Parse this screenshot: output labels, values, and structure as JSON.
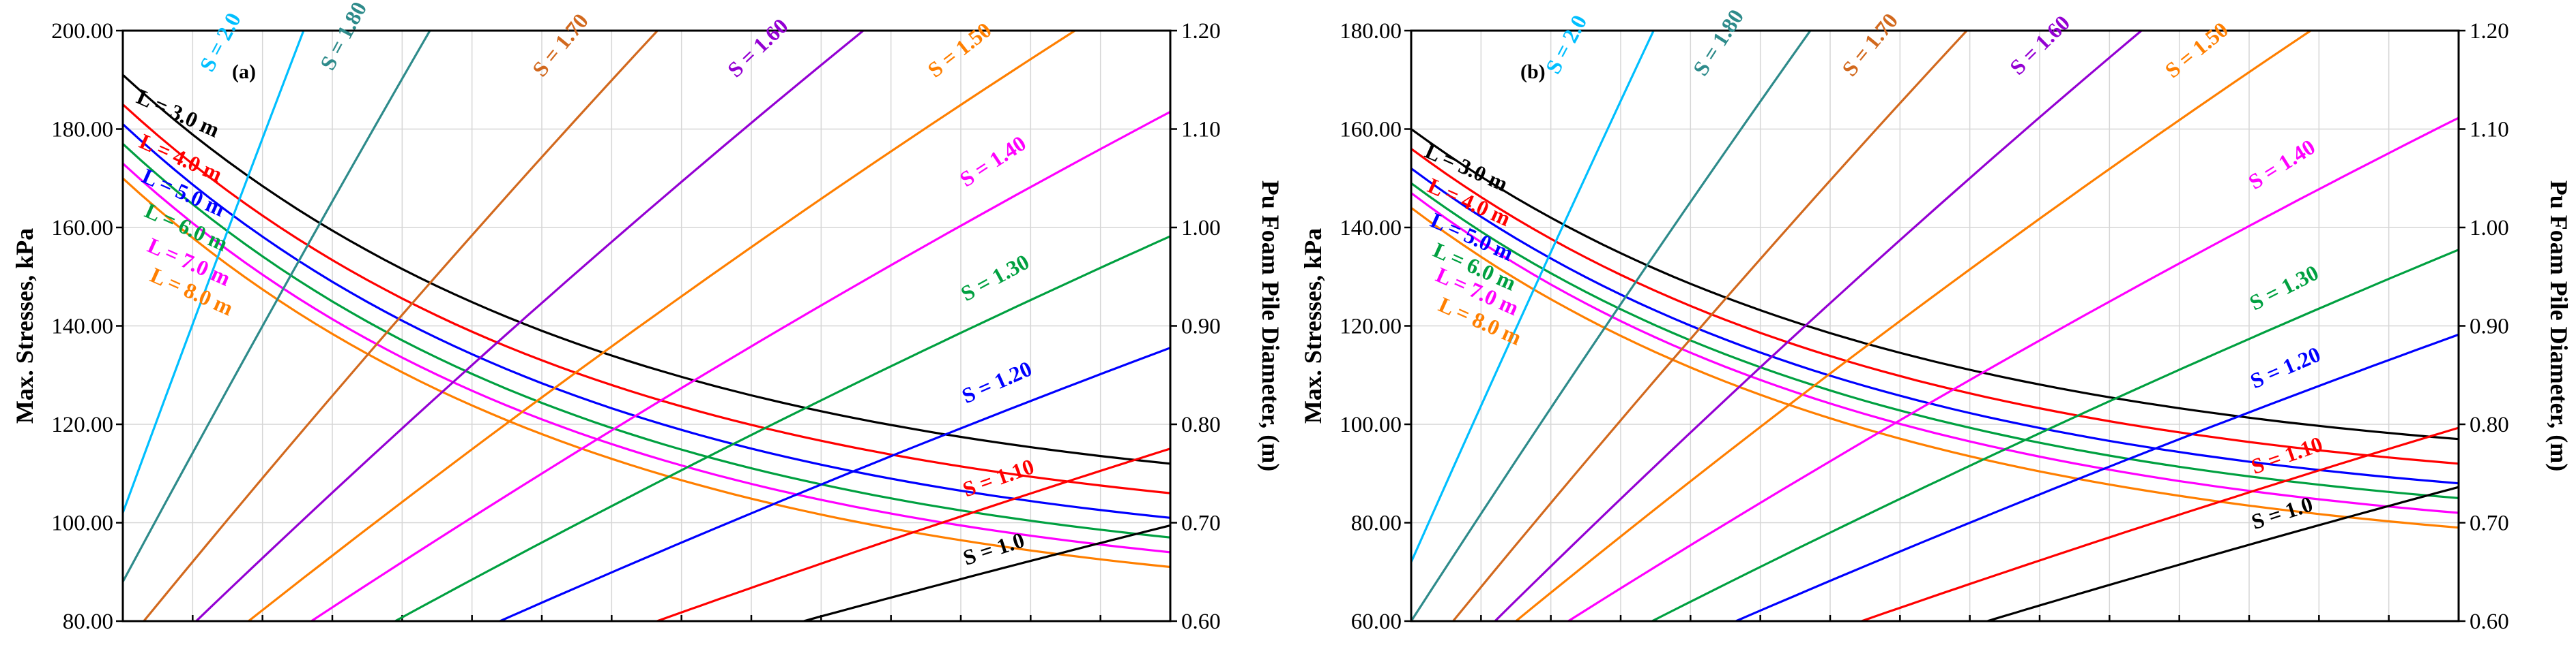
{
  "chart_data": [
    {
      "type": "line",
      "panel_label": "(a)",
      "ylabel": "Max. Stresses, kPa",
      "y2label": "Pu Foam Pile Diameter, (m)",
      "ylim": [
        80,
        200
      ],
      "y2lim": [
        0.6,
        1.2
      ],
      "y_ticks": [
        "80.00",
        "100.00",
        "120.00",
        "140.00",
        "160.00",
        "180.00",
        "200.00"
      ],
      "y2_ticks": [
        "0.60",
        "0.70",
        "0.80",
        "0.90",
        "1.00",
        "1.10",
        "1.20"
      ],
      "xlim": [
        0,
        1
      ],
      "grid": true,
      "series_left": [
        {
          "label": "L = 3.0 m",
          "color": "#000000",
          "start": 191,
          "end": 112
        },
        {
          "label": "L = 4.0 m",
          "color": "#ff0000",
          "start": 185,
          "end": 106
        },
        {
          "label": "L = 5.0 m",
          "color": "#0000ff",
          "start": 181,
          "end": 101
        },
        {
          "label": "L = 6.0 m",
          "color": "#00a040",
          "start": 177,
          "end": 97
        },
        {
          "label": "L = 7.0 m",
          "color": "#ff00ff",
          "start": 173,
          "end": 94
        },
        {
          "label": "L = 8.0 m",
          "color": "#ff7f00",
          "start": 170,
          "end": 91
        }
      ],
      "series_right": [
        {
          "label": "S = 2.0",
          "color": "#00bfff",
          "x0": 0.0,
          "y0": 0.71,
          "slope": 2.9
        },
        {
          "label": "S = 1.80",
          "color": "#2e8b8b",
          "x0": 0.0,
          "y0": 0.64,
          "slope": 1.98
        },
        {
          "label": "S = 1.70",
          "color": "#d2691e",
          "x0": 0.02,
          "y0": 0.6,
          "slope": 1.3
        },
        {
          "label": "S = 1.60",
          "color": "#9400d3",
          "x0": 0.07,
          "y0": 0.6,
          "slope": 1.02
        },
        {
          "label": "S = 1.50",
          "color": "#ff7f00",
          "x0": 0.12,
          "y0": 0.6,
          "slope": 0.84
        },
        {
          "label": "S = 1.40",
          "color": "#ff00ff",
          "x0": 0.18,
          "y0": 0.6,
          "slope": 0.7
        },
        {
          "label": "S = 1.30",
          "color": "#00a040",
          "x0": 0.26,
          "y0": 0.6,
          "slope": 0.58
        },
        {
          "label": "S = 1.20",
          "color": "#0000ff",
          "x0": 0.36,
          "y0": 0.6,
          "slope": 0.47
        },
        {
          "label": "S = 1.10",
          "color": "#ff0000",
          "x0": 0.51,
          "y0": 0.6,
          "slope": 0.38
        },
        {
          "label": "S = 1.0",
          "color": "#000000",
          "x0": 0.65,
          "y0": 0.6,
          "slope": 0.29
        }
      ]
    },
    {
      "type": "line",
      "panel_label": "(b)",
      "ylabel": "Max. Stresses, kPa",
      "y2label": "Pu Foam Pile Diameter, (m)",
      "ylim": [
        60,
        180
      ],
      "y2lim": [
        0.6,
        1.2
      ],
      "y_ticks": [
        "60.00",
        "80.00",
        "100.00",
        "120.00",
        "140.00",
        "160.00",
        "180.00"
      ],
      "y2_ticks": [
        "0.60",
        "0.70",
        "0.80",
        "0.90",
        "1.00",
        "1.10",
        "1.20"
      ],
      "xlim": [
        0,
        1
      ],
      "grid": true,
      "series_left": [
        {
          "label": "L = 3.0 m",
          "color": "#000000",
          "start": 160,
          "end": 97
        },
        {
          "label": "L = 4.0 m",
          "color": "#ff0000",
          "start": 156,
          "end": 92
        },
        {
          "label": "L = 5.0 m",
          "color": "#0000ff",
          "start": 152,
          "end": 88
        },
        {
          "label": "L = 6.0 m",
          "color": "#00a040",
          "start": 149,
          "end": 85
        },
        {
          "label": "L = 7.0 m",
          "color": "#ff00ff",
          "start": 147,
          "end": 82
        },
        {
          "label": "L = 8.0 m",
          "color": "#ff7f00",
          "start": 144,
          "end": 79
        }
      ],
      "series_right": [
        {
          "label": "S = 2.0",
          "color": "#00bfff",
          "x0": 0.0,
          "y0": 0.66,
          "slope": 2.4
        },
        {
          "label": "S = 1.80",
          "color": "#2e8b8b",
          "x0": 0.0,
          "y0": 0.6,
          "slope": 1.65
        },
        {
          "label": "S = 1.70",
          "color": "#d2691e",
          "x0": 0.04,
          "y0": 0.6,
          "slope": 1.3
        },
        {
          "label": "S = 1.60",
          "color": "#9400d3",
          "x0": 0.08,
          "y0": 0.6,
          "slope": 1.05
        },
        {
          "label": "S = 1.50",
          "color": "#ff7f00",
          "x0": 0.1,
          "y0": 0.6,
          "slope": 0.87
        },
        {
          "label": "S = 1.40",
          "color": "#ff00ff",
          "x0": 0.15,
          "y0": 0.6,
          "slope": 0.67
        },
        {
          "label": "S = 1.30",
          "color": "#00a040",
          "x0": 0.23,
          "y0": 0.6,
          "slope": 0.54
        },
        {
          "label": "S = 1.20",
          "color": "#0000ff",
          "x0": 0.31,
          "y0": 0.6,
          "slope": 0.46
        },
        {
          "label": "S = 1.10",
          "color": "#ff0000",
          "x0": 0.43,
          "y0": 0.6,
          "slope": 0.37
        },
        {
          "label": "S = 1.0",
          "color": "#000000",
          "x0": 0.55,
          "y0": 0.6,
          "slope": 0.32
        }
      ]
    }
  ]
}
